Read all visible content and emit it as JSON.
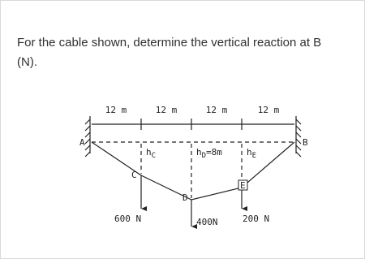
{
  "question": {
    "lines": [
      "For the cable shown, determine the vertical reaction at B",
      "(N)."
    ]
  },
  "diagram": {
    "spans": [
      "12 m",
      "12 m",
      "12 m",
      "12 m"
    ],
    "supports": {
      "left": "A",
      "right": "B"
    },
    "points": {
      "c": "C",
      "d": "D",
      "e": "E"
    },
    "heights": {
      "c": {
        "main": "h",
        "sub": "C"
      },
      "d": {
        "main": "h",
        "sub": "D",
        "rest": "=8m"
      },
      "e": {
        "main": "h",
        "sub": "E"
      }
    },
    "loads": {
      "c": "600 N",
      "d": "400N",
      "e": "200 N"
    }
  }
}
